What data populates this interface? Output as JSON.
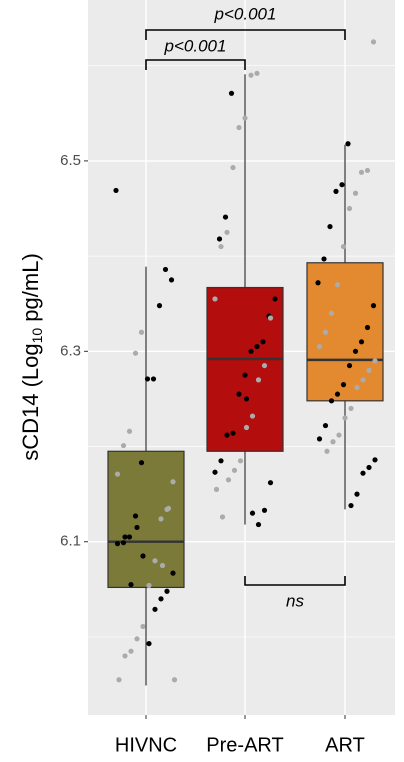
{
  "chart_data": {
    "type": "box",
    "ylabel": [
      "sCD14 (Log",
      "10",
      " pg/mL)"
    ],
    "categories": [
      "HIVNC",
      "Pre-ART",
      "ART"
    ],
    "colors": [
      "#7b7a38",
      "#b30d0d",
      "#e38a31"
    ],
    "ylim": [
      5.918,
      6.669
    ],
    "yticks": [
      6.1,
      6.3,
      6.5
    ],
    "minor_yticks": [
      6.0,
      6.2,
      6.4,
      6.6
    ],
    "grid": true,
    "boxes": [
      {
        "low": 5.949,
        "q1": 6.052,
        "median": 6.1,
        "q3": 6.195,
        "high": 6.389
      },
      {
        "low": 6.118,
        "q1": 6.195,
        "median": 6.292,
        "q3": 6.367,
        "high": 6.591
      },
      {
        "low": 6.134,
        "q1": 6.248,
        "median": 6.291,
        "q3": 6.393,
        "high": 6.517
      }
    ],
    "points": [
      {
        "color": "#000000",
        "values": [
          [
            6.469,
            6.375,
            6.386,
            6.348,
            6.271,
            6.271,
            6.183,
            6.127,
            6.105,
            6.099,
            6.098,
            6.067,
            6.048,
            6.04,
            6.029,
            5.993,
            6.085,
            6.115,
            6.055,
            6.105
          ],
          [
            6.571,
            6.441,
            6.418,
            6.355,
            6.337,
            6.31,
            6.305,
            6.3,
            6.275,
            6.255,
            6.214,
            6.212,
            6.185,
            6.173,
            6.162,
            6.133,
            6.118,
            6.13,
            6.25
          ],
          [
            6.518,
            6.475,
            6.468,
            6.431,
            6.397,
            6.372,
            6.348,
            6.325,
            6.31,
            6.3,
            6.285,
            6.265,
            6.255,
            6.248,
            6.222,
            6.208,
            6.186,
            6.178,
            6.172,
            6.15,
            6.138
          ]
        ]
      },
      {
        "color": "#ababab",
        "values": [
          [
            6.32,
            6.298,
            6.216,
            6.201,
            6.171,
            6.163,
            6.134,
            6.124,
            6.08,
            6.054,
            6.011,
            5.998,
            5.985,
            5.98,
            5.955,
            5.955,
            6.135,
            6.075
          ],
          [
            6.592,
            6.59,
            6.545,
            6.535,
            6.493,
            6.425,
            6.41,
            6.355,
            6.335,
            6.285,
            6.27,
            6.232,
            6.22,
            6.185,
            6.175,
            6.165,
            6.126,
            6.155
          ],
          [
            6.625,
            6.49,
            6.488,
            6.466,
            6.45,
            6.41,
            6.37,
            6.34,
            6.32,
            6.305,
            6.29,
            6.28,
            6.27,
            6.262,
            6.24,
            6.23,
            6.212,
            6.205,
            6.195
          ]
        ]
      }
    ],
    "annotations": [
      {
        "text": "p<0.001",
        "groups": [
          "HIVNC",
          "Pre-ART"
        ]
      },
      {
        "text": "p<0.001",
        "groups": [
          "HIVNC",
          "ART"
        ]
      },
      {
        "text": "ns",
        "groups": [
          "Pre-ART",
          "ART"
        ]
      }
    ]
  }
}
